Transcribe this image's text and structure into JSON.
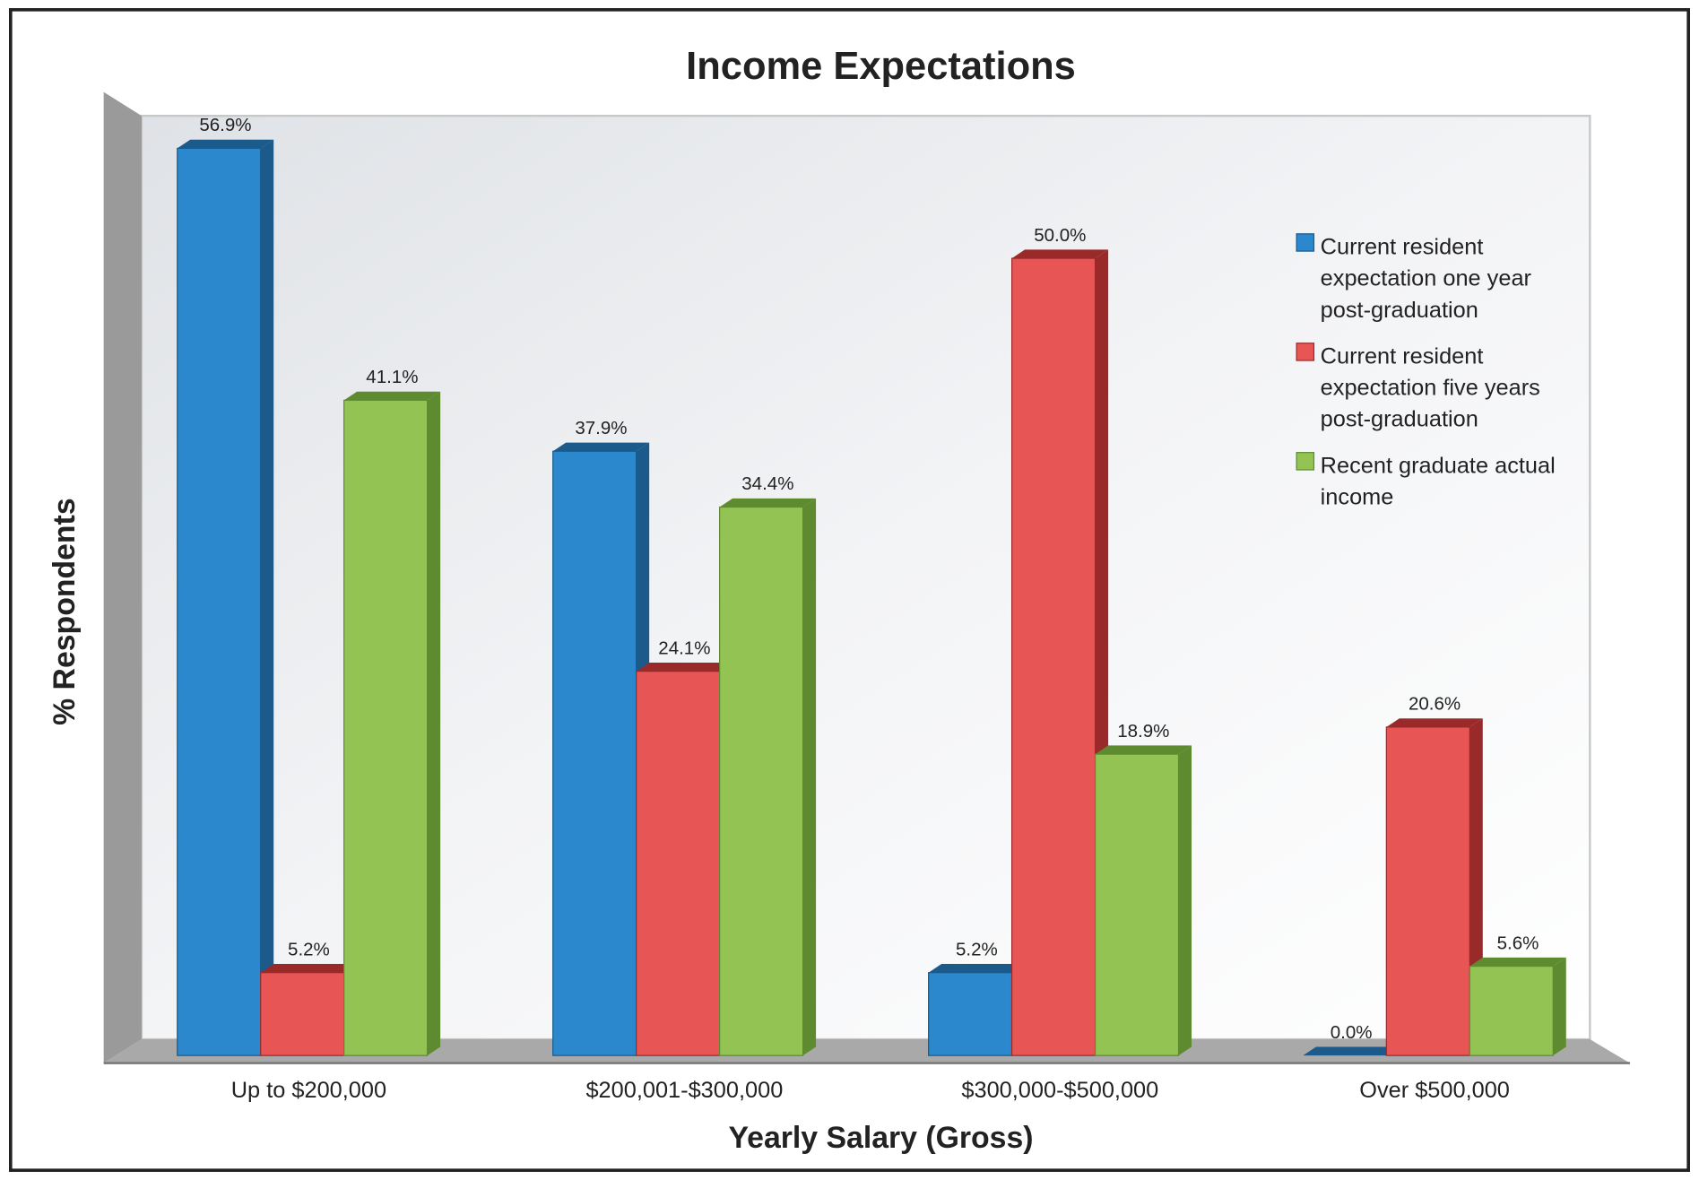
{
  "chart_data": {
    "type": "bar",
    "title": "Income Expectations",
    "xlabel": "Yearly Salary (Gross)",
    "ylabel": "% Respondents",
    "ylim": [
      0,
      60
    ],
    "grid": false,
    "legend_position": "right",
    "categories": [
      "Up to $200,000",
      "$200,001-$300,000",
      "$300,000-$500,000",
      "Over $500,000"
    ],
    "series": [
      {
        "name": "Current resident expectation one year post-graduation",
        "name_lines": [
          "Current resident",
          "expectation one year",
          "post-graduation"
        ],
        "color": "#2b88cc",
        "side_color": "#1b5a8a",
        "values": [
          56.9,
          37.9,
          5.2,
          0.0
        ],
        "labels": [
          "56.9%",
          "37.9%",
          "5.2%",
          "0.0%"
        ]
      },
      {
        "name": "Current resident expectation five years post-graduation",
        "name_lines": [
          "Current resident",
          "expectation five years",
          "post-graduation"
        ],
        "color": "#e85555",
        "side_color": "#9a2a2a",
        "values": [
          5.2,
          24.1,
          50.0,
          20.6
        ],
        "labels": [
          "5.2%",
          "24.1%",
          "50.0%",
          "20.6%"
        ]
      },
      {
        "name": "Recent graduate actual income",
        "name_lines": [
          "Recent graduate actual",
          "income"
        ],
        "color": "#92c353",
        "side_color": "#5e8a30",
        "values": [
          41.1,
          34.4,
          18.9,
          5.6
        ],
        "labels": [
          "41.1%",
          "34.4%",
          "18.9%",
          "5.6%"
        ]
      }
    ]
  }
}
